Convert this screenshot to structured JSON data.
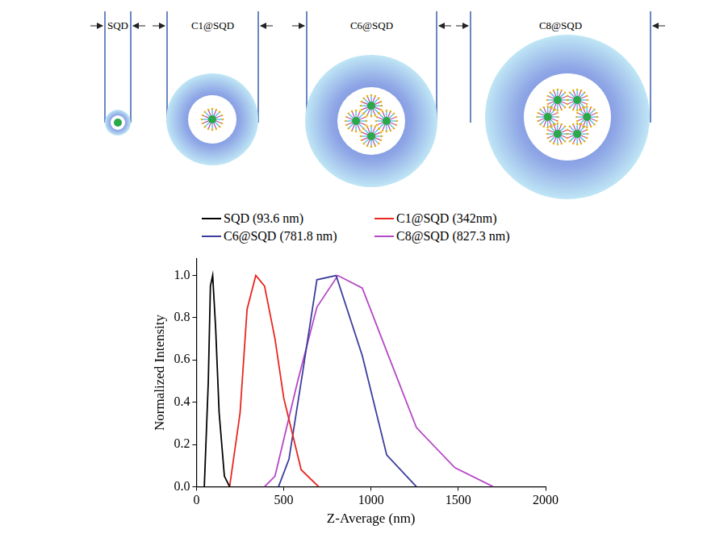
{
  "diagram": {
    "labels": [
      "SQD",
      "C1@SQD",
      "C6@SQD",
      "C8@SQD"
    ]
  },
  "chart_data": {
    "type": "line",
    "x_label": "Z-Average (nm)",
    "y_label": "Normalized Intensity",
    "xlim": [
      0,
      2000
    ],
    "xticks": [
      0,
      500,
      1000,
      1500,
      2000
    ],
    "ylim": [
      0,
      1.08
    ],
    "yticks": [
      {
        "value": 0,
        "label": "0.0"
      },
      {
        "value": 0.2,
        "label": "0.2"
      },
      {
        "value": 0.4,
        "label": "0.4"
      },
      {
        "value": 0.6,
        "label": "0.6"
      },
      {
        "value": 0.8,
        "label": "0.8"
      },
      {
        "value": 1.0,
        "label": "1.0"
      }
    ],
    "grid": false,
    "legend": "top",
    "series": [
      {
        "name": "SQD (93.6 nm)",
        "color": "#000000",
        "x": [
          45,
          68,
          80,
          93,
          110,
          130,
          160,
          190
        ],
        "values": [
          0,
          0.5,
          0.95,
          1.0,
          0.75,
          0.35,
          0.05,
          0
        ]
      },
      {
        "name": "C1@SQD (342nm)",
        "color": "#e8261f",
        "x": [
          190,
          250,
          290,
          340,
          390,
          450,
          500,
          600,
          700
        ],
        "values": [
          0,
          0.35,
          0.84,
          1.0,
          0.95,
          0.7,
          0.42,
          0.08,
          0
        ]
      },
      {
        "name": "C6@SQD (781.8 nm)",
        "color": "#3c3c9e",
        "x": [
          470,
          530,
          610,
          690,
          800,
          950,
          1090,
          1260
        ],
        "values": [
          0,
          0.13,
          0.55,
          0.98,
          1.0,
          0.62,
          0.15,
          0
        ]
      },
      {
        "name": "C8@SQD (827.3 nm)",
        "color": "#b548c6",
        "x": [
          390,
          450,
          580,
          690,
          810,
          950,
          1100,
          1260,
          1480,
          1700
        ],
        "values": [
          0,
          0.05,
          0.5,
          0.85,
          1.0,
          0.94,
          0.62,
          0.28,
          0.09,
          0
        ]
      }
    ]
  }
}
